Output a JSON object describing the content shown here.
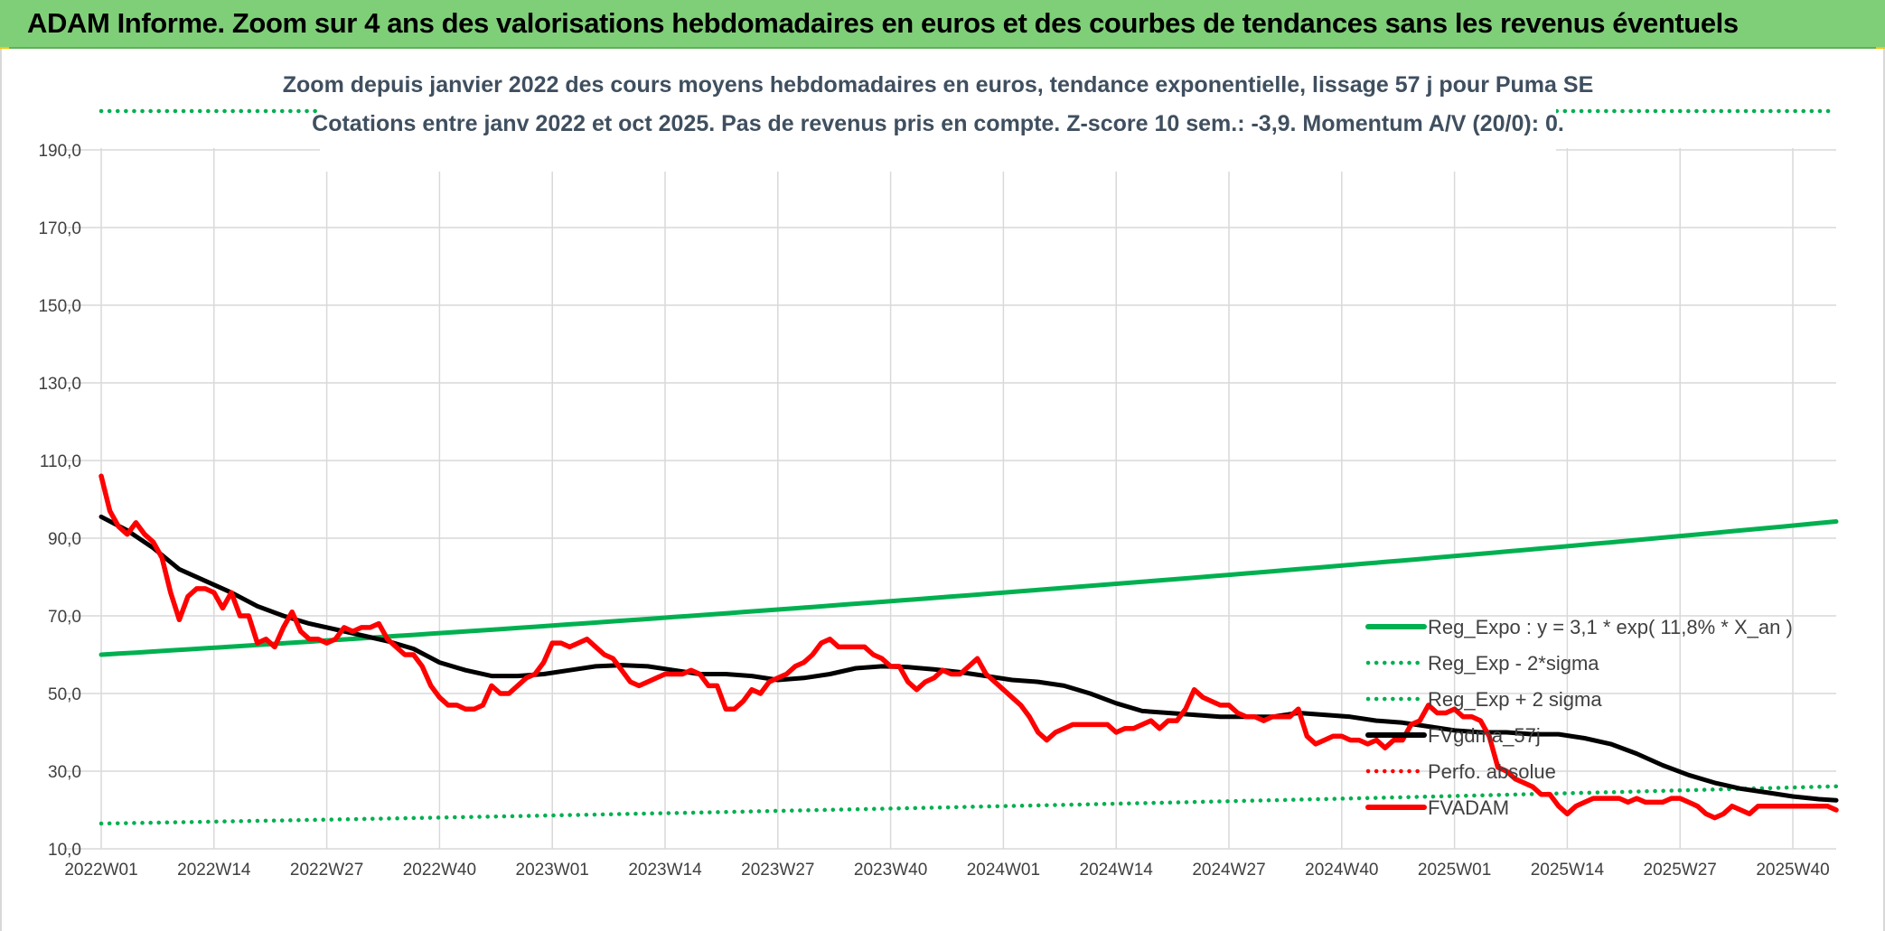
{
  "banner": {
    "title": "ADAM Informe. Zoom sur 4 ans des valorisations hebdomadaires en euros et des courbes de tendances sans les revenus éventuels"
  },
  "colors": {
    "banner_bg": "#7fcf78",
    "regression": "#00b050",
    "price": "#ff0000",
    "smoothing": "#000000",
    "perf": "#ff0000",
    "grid": "#d9d9d9",
    "text": "#404040"
  },
  "chart_data": {
    "type": "line",
    "title": "Zoom depuis janvier 2022 des cours moyens hebdomadaires en euros, tendance exponentielle, lissage 57 j pour Puma SE",
    "subtitle": "Cotations entre janv 2022 et oct 2025. Pas de revenus pris en compte. Z-score 10 sem.: -3,9. Momentum A/V (20/0): 0.",
    "ylim": [
      10,
      200
    ],
    "yticks": [
      "10,0",
      "30,0",
      "50,0",
      "70,0",
      "90,0",
      "110,0",
      "130,0",
      "150,0",
      "170,0",
      "190,0"
    ],
    "ytick_values": [
      10,
      30,
      50,
      70,
      90,
      110,
      130,
      150,
      170,
      190
    ],
    "xlim": [
      0,
      200
    ],
    "xticks": [
      "2022W01",
      "2022W14",
      "2022W27",
      "2022W40",
      "2023W01",
      "2023W14",
      "2023W27",
      "2023W40",
      "2024W01",
      "2024W14",
      "2024W27",
      "2024W40",
      "2025W01",
      "2025W14",
      "2025W27",
      "2025W40"
    ],
    "xtick_positions": [
      0,
      13,
      26,
      39,
      52,
      65,
      78,
      91,
      104,
      117,
      130,
      143,
      156,
      169,
      182,
      195
    ],
    "grid": true,
    "legend_position": "right",
    "legend": [
      {
        "label": "Reg_Expo : y = 3,1 * exp( 11,8% *  X_an )",
        "style": "solid",
        "color": "#00b050"
      },
      {
        "label": "Reg_Exp - 2*sigma",
        "style": "dotted",
        "color": "#00b050"
      },
      {
        "label": "Reg_Exp + 2 sigma",
        "style": "dotted",
        "color": "#00b050"
      },
      {
        "label": "FVgdma_57j",
        "style": "solid",
        "color": "#000000"
      },
      {
        "label": "Perfo. absolue",
        "style": "dotted",
        "color": "#ff0000"
      },
      {
        "label": "FVADAM",
        "style": "solid",
        "color": "#ff0000"
      }
    ],
    "series": [
      {
        "name": "Reg_Expo : y = 3,1 * exp( 11,8% *  X_an )",
        "style": "solid",
        "color": "#00b050",
        "x": [
          0,
          52,
          104,
          156,
          200
        ],
        "y": [
          60.0,
          67.5,
          76.0,
          85.4,
          94.3
        ]
      },
      {
        "name": "Reg_Exp - 2*sigma",
        "style": "dotted",
        "color": "#00b050",
        "x": [
          0,
          52,
          104,
          156,
          200
        ],
        "y": [
          16.5,
          18.6,
          21.0,
          23.6,
          26.1
        ]
      },
      {
        "name": "Reg_Exp + 2 sigma",
        "style": "dotted",
        "color": "#00b050",
        "x": [
          0,
          200
        ],
        "y": [
          200,
          200
        ]
      },
      {
        "name": "FVgdma_57j",
        "style": "solid",
        "color": "#000000",
        "x": [
          0,
          3,
          6,
          9,
          12,
          15,
          18,
          21,
          24,
          27,
          30,
          33,
          36,
          39,
          42,
          45,
          48,
          51,
          54,
          57,
          60,
          63,
          66,
          69,
          72,
          75,
          78,
          81,
          84,
          87,
          90,
          93,
          96,
          99,
          102,
          105,
          108,
          111,
          114,
          117,
          120,
          123,
          126,
          129,
          132,
          135,
          138,
          141,
          144,
          147,
          150,
          153,
          156,
          159,
          162,
          165,
          168,
          171,
          174,
          177,
          180,
          183,
          186,
          189,
          192,
          195,
          198,
          200
        ],
        "y": [
          95.5,
          92.0,
          87.5,
          82.0,
          79.0,
          76.0,
          72.5,
          70.0,
          68.0,
          66.5,
          65.0,
          63.5,
          61.5,
          58.0,
          56.0,
          54.5,
          54.5,
          55.0,
          56.0,
          57.0,
          57.3,
          57.0,
          56.0,
          55.0,
          55.0,
          54.5,
          53.5,
          54.0,
          55.0,
          56.5,
          57.0,
          56.8,
          56.2,
          55.5,
          54.5,
          53.5,
          53.0,
          52.0,
          50.0,
          47.5,
          45.5,
          45.0,
          44.5,
          44.0,
          44.0,
          44.0,
          45.0,
          44.5,
          44.0,
          43.0,
          42.5,
          41.5,
          40.5,
          40.0,
          40.0,
          39.5,
          39.5,
          38.5,
          37.0,
          34.5,
          31.5,
          29.0,
          27.0,
          25.5,
          24.5,
          23.5,
          22.8,
          22.5
        ]
      },
      {
        "name": "FVADAM",
        "style": "solid",
        "color": "#ff0000",
        "x": [
          0,
          1,
          2,
          3,
          4,
          5,
          6,
          7,
          8,
          9,
          10,
          11,
          12,
          13,
          14,
          15,
          16,
          17,
          18,
          19,
          20,
          21,
          22,
          23,
          24,
          25,
          26,
          27,
          28,
          29,
          30,
          31,
          32,
          33,
          34,
          35,
          36,
          37,
          38,
          39,
          40,
          41,
          42,
          43,
          44,
          45,
          46,
          47,
          48,
          49,
          50,
          51,
          52,
          53,
          54,
          55,
          56,
          57,
          58,
          59,
          60,
          61,
          62,
          63,
          64,
          65,
          66,
          67,
          68,
          69,
          70,
          71,
          72,
          73,
          74,
          75,
          76,
          77,
          78,
          79,
          80,
          81,
          82,
          83,
          84,
          85,
          86,
          87,
          88,
          89,
          90,
          91,
          92,
          93,
          94,
          95,
          96,
          97,
          98,
          99,
          100,
          101,
          102,
          103,
          104,
          105,
          106,
          107,
          108,
          109,
          110,
          111,
          112,
          113,
          114,
          115,
          116,
          117,
          118,
          119,
          120,
          121,
          122,
          123,
          124,
          125,
          126,
          127,
          128,
          129,
          130,
          131,
          132,
          133,
          134,
          135,
          136,
          137,
          138,
          139,
          140,
          141,
          142,
          143,
          144,
          145,
          146,
          147,
          148,
          149,
          150,
          151,
          152,
          153,
          154,
          155,
          156,
          157,
          158,
          159,
          160,
          161,
          162,
          163,
          164,
          165,
          166,
          167,
          168,
          169,
          170,
          171,
          172,
          173,
          174,
          175,
          176,
          177,
          178,
          179,
          180,
          181,
          182,
          183,
          184,
          185,
          186,
          187,
          188,
          189,
          190,
          191,
          192,
          193,
          194,
          195,
          196,
          197,
          198,
          199,
          200
        ],
        "y": [
          106,
          97,
          93,
          91,
          94,
          91,
          89,
          85,
          76,
          69,
          75,
          77,
          77,
          76,
          72,
          76,
          70,
          70,
          63,
          64,
          62,
          67,
          71,
          66,
          64,
          64,
          63,
          64,
          67,
          66,
          67,
          67,
          68,
          64,
          62,
          60,
          60,
          57,
          52,
          49,
          47,
          47,
          46,
          46,
          47,
          52,
          50,
          50,
          52,
          54,
          55,
          58,
          63,
          63,
          62,
          63,
          64,
          62,
          60,
          59,
          56,
          53,
          52,
          53,
          54,
          55,
          55,
          55,
          56,
          55,
          52,
          52,
          46,
          46,
          48,
          51,
          50,
          53,
          54,
          55,
          57,
          58,
          60,
          63,
          64,
          62,
          62,
          62,
          62,
          60,
          59,
          57,
          57,
          53,
          51,
          53,
          54,
          56,
          55,
          55,
          57,
          59,
          55,
          53,
          51,
          49,
          47,
          44,
          40,
          38,
          40,
          41,
          42,
          42,
          42,
          42,
          42,
          40,
          41,
          41,
          42,
          43,
          41,
          43,
          43,
          46,
          51,
          49,
          48,
          47,
          47,
          45,
          44,
          44,
          43,
          44,
          44,
          44,
          46,
          39,
          37,
          38,
          39,
          39,
          38,
          38,
          37,
          38,
          36,
          38,
          38,
          42,
          43,
          47,
          45,
          45,
          46,
          44,
          44,
          43,
          39,
          31,
          30,
          28,
          27,
          26,
          24,
          24,
          21,
          19,
          21,
          22,
          23,
          23,
          23,
          23,
          22,
          23,
          22,
          22,
          22,
          23,
          23,
          22,
          21,
          19,
          18,
          19,
          21,
          20,
          19,
          21,
          21,
          21,
          21,
          21,
          21,
          21,
          21,
          21,
          20
        ]
      }
    ]
  }
}
